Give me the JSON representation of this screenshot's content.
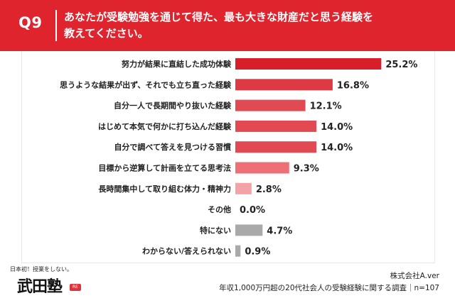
{
  "header": {
    "question_label": "Q9",
    "question_line1": "あなたが受験勉強を通じて得た、最も大きな財産だと思う経験を",
    "question_line2": "教えてください。"
  },
  "chart_data": {
    "type": "bar",
    "orientation": "horizontal",
    "categories": [
      "努力が結果に直結した成功体験",
      "思うような結果が出ず、それでも立ち直った経験",
      "自分一人で長期間やり抜いた経験",
      "はじめて本気で何かに打ち込んだ経験",
      "自分で調べて答えを見つける習慣",
      "目標から逆算して計画を立てる思考法",
      "長時間集中して取り組む体力・精神力",
      "その他",
      "特にない",
      "わからない/答えられない"
    ],
    "values": [
      25.2,
      16.8,
      12.1,
      14.0,
      14.0,
      9.3,
      2.8,
      0.0,
      4.7,
      0.9
    ],
    "value_labels": [
      "25.2%",
      "16.8%",
      "12.1%",
      "14.0%",
      "14.0%",
      "9.3%",
      "2.8%",
      "0.0%",
      "4.7%",
      "0.9%"
    ],
    "bar_colors": [
      "#d71f2a",
      "#de3a44",
      "#e24a53",
      "#e24a53",
      "#e24a53",
      "#ec7076",
      "#f3a2a5",
      "#f3a2a5",
      "#a9a9a9",
      "#a9a9a9"
    ],
    "xlim": [
      0,
      27
    ],
    "grid": false
  },
  "logo": {
    "tagline": "日本初！授業をしない。",
    "mark": "武田塾",
    "badge": "RE"
  },
  "footer": {
    "company": "株式会社A.ver",
    "survey": "年収1,000万円超の20代社会人の受験経験に関する調査｜n=107"
  }
}
